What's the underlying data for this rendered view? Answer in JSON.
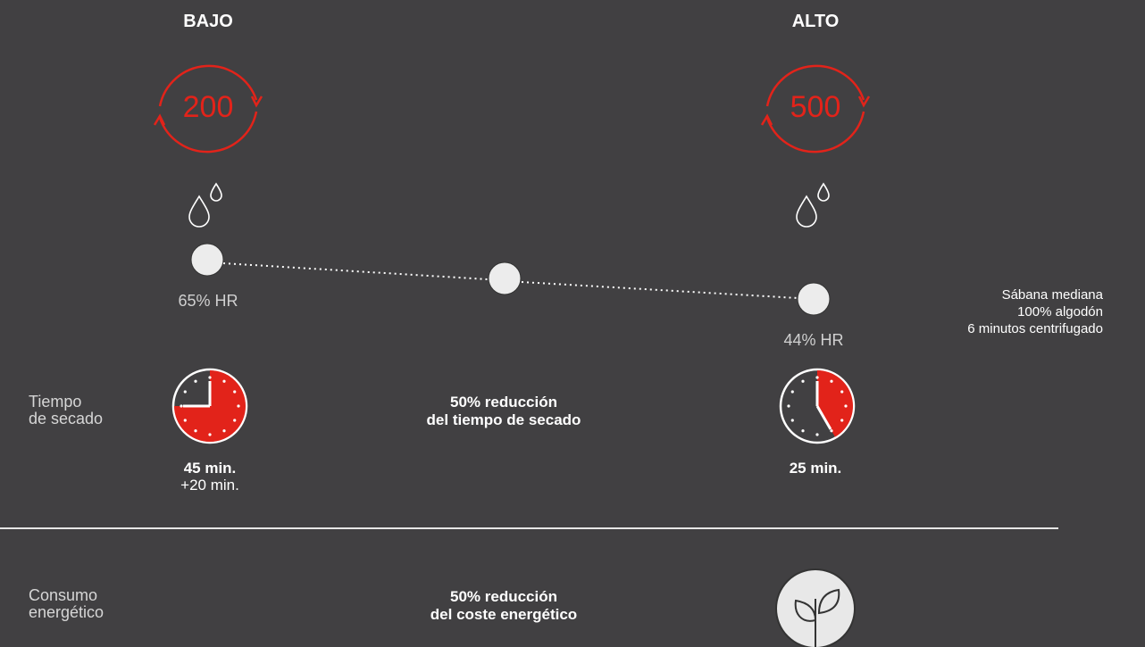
{
  "low": {
    "title": "BAJO",
    "speed": "200",
    "humidity": "65% HR",
    "time_main": "45 min.",
    "time_extra": "+20 min.",
    "clock_fraction": 0.75
  },
  "high": {
    "title": "ALTO",
    "speed": "500",
    "humidity": "44% HR",
    "time_main": "25 min.",
    "clock_fraction": 0.4167
  },
  "labels": {
    "drying_time_line1": "Tiempo",
    "drying_time_line2": "de secado",
    "energy_line1": "Consumo",
    "energy_line2": "energético"
  },
  "reductions": {
    "time_line1": "50% reducción",
    "time_line2": "del tiempo de secado",
    "energy_line1": "50% reducción",
    "energy_line2": "del coste energético"
  },
  "info": {
    "line1": "Sábana mediana",
    "line2": "100% algodón",
    "line3": "6 minutos centrifugado"
  },
  "colors": {
    "accent": "#e2231a",
    "background": "#414042",
    "dot": "#ececec"
  },
  "icons": {
    "cycle": "rotation-arrows-icon",
    "drops": "water-drops-icon",
    "clock": "clock-icon",
    "plant": "plant-sprout-icon"
  }
}
